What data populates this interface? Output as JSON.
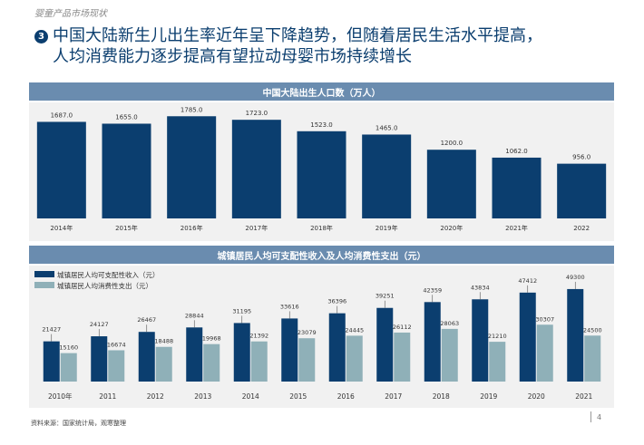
{
  "page": {
    "section_label": "婴童产品市场现状",
    "badge": "3",
    "headline_lines": [
      "中国大陆新生儿出生率近年呈下降趋势，但随着居民生活水平提高，",
      "人均消费能力逐步提高有望拉动母婴市场持续增长"
    ],
    "source": "资料来源：国家统计局，观寒整理",
    "page_number": "4"
  },
  "colors": {
    "navy": "#0b3e6f",
    "light_series": "#8fb0b8",
    "header_bg": "#6a8caf",
    "panel_bg": "#f1f1f1"
  },
  "chart_data": [
    {
      "type": "bar",
      "title": "中国大陆出生人口数（万人）",
      "categories": [
        "2014年",
        "2015年",
        "2016年",
        "2017年",
        "2018年",
        "2019年",
        "2020年",
        "2021年",
        "2022"
      ],
      "values": [
        1687.0,
        1655.0,
        1785.0,
        1723.0,
        1523.0,
        1465.0,
        1200.0,
        1062.0,
        956.0
      ],
      "value_labels": [
        "1687.0",
        "1655.0",
        "1785.0",
        "1723.0",
        "1523.0",
        "1465.0",
        "1200.0",
        "1062.0",
        "956.0"
      ],
      "ylim": [
        0,
        1900
      ],
      "grid": false,
      "xlabel": "",
      "ylabel": ""
    },
    {
      "type": "bar",
      "title": "城镇居民人均可支配性收入及人均消费性支出（元）",
      "categories": [
        "2010年",
        "2011",
        "2012",
        "2013",
        "2014",
        "2015",
        "2016",
        "2017",
        "2018",
        "2019",
        "2020",
        "2021"
      ],
      "series": [
        {
          "name": "城镇居民人均可支配性收入（元）",
          "values": [
            21427,
            24127,
            26467,
            28844,
            31195,
            33616,
            36396,
            39251,
            42359,
            43834,
            47412,
            49300
          ]
        },
        {
          "name": "城镇居民人均消费性支出（元）",
          "values": [
            15160,
            16674,
            18488,
            19968,
            21392,
            23079,
            24445,
            26112,
            28063,
            21210,
            30307,
            24500
          ]
        }
      ],
      "legend_position": "top-left",
      "ylim": [
        0,
        57000
      ],
      "grid": false,
      "xlabel": "",
      "ylabel": ""
    }
  ]
}
